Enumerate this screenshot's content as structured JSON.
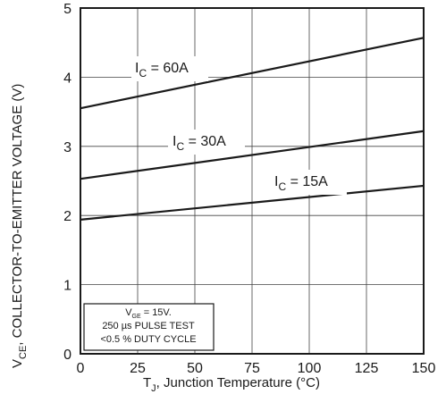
{
  "chart_data": {
    "type": "line",
    "xlabel": {
      "main": "T",
      "sub": "J",
      "rest": ", Junction Temperature (°C)"
    },
    "ylabel": {
      "main": "V",
      "sub": "CE",
      "rest": ", COLLECTOR-TO-EMITTER VOLTAGE (V)"
    },
    "xlim": [
      0,
      150
    ],
    "ylim": [
      0,
      5
    ],
    "x_ticks": [
      "0",
      "25",
      "50",
      "75",
      "100",
      "125",
      "150"
    ],
    "y_ticks": [
      "0",
      "1",
      "2",
      "3",
      "4",
      "5"
    ],
    "grid": true,
    "series": [
      {
        "label_main": "I",
        "label_sub": "C",
        "label_rest": " = 60A",
        "x": [
          0,
          150
        ],
        "y": [
          3.55,
          4.57
        ]
      },
      {
        "label_main": "I",
        "label_sub": "C",
        "label_rest": " = 30A",
        "x": [
          0,
          150
        ],
        "y": [
          2.53,
          3.22
        ]
      },
      {
        "label_main": "I",
        "label_sub": "C",
        "label_rest": " = 15A",
        "x": [
          0,
          150
        ],
        "y": [
          1.94,
          2.43
        ]
      }
    ],
    "annotation": {
      "line1_main": "V",
      "line1_sub": "GE",
      "line1_rest": " = 15V.",
      "line2": "250 µs PULSE TEST",
      "line3": "<0.5 % DUTY CYCLE"
    }
  }
}
